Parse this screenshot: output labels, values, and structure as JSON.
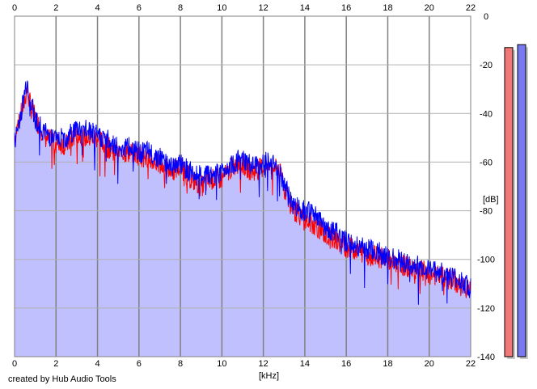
{
  "chart_data": {
    "type": "area",
    "xlabel": "[kHz]",
    "ylabel": "[dB]",
    "xlim": [
      0,
      22
    ],
    "ylim": [
      -140,
      0
    ],
    "x_ticks": [
      0,
      2,
      4,
      6,
      8,
      10,
      12,
      14,
      16,
      18,
      20,
      22
    ],
    "y_ticks": [
      0,
      -20,
      -40,
      -60,
      -80,
      -100,
      -120,
      -140
    ],
    "grid": true,
    "fill_color": "#c0c0ff",
    "series": [
      {
        "color": "#ff0000",
        "x": [
          0.0,
          0.2,
          0.4,
          0.6,
          0.8,
          1.0,
          1.2,
          1.5,
          2.0,
          2.5,
          3.0,
          3.5,
          4.0,
          4.5,
          5.0,
          5.5,
          6.0,
          6.5,
          7.0,
          7.5,
          8.0,
          8.5,
          9.0,
          9.5,
          10.0,
          10.5,
          11.0,
          11.5,
          12.0,
          12.5,
          12.9,
          13.2,
          13.5,
          14.0,
          14.5,
          15.0,
          15.5,
          16.0,
          16.5,
          17.0,
          17.5,
          18.0,
          18.5,
          19.0,
          19.5,
          20.0,
          20.5,
          21.0,
          21.5,
          22.0
        ],
        "values": [
          -50,
          -43,
          -38,
          -30,
          -38,
          -42,
          -45,
          -50,
          -52,
          -53,
          -48,
          -50,
          -50,
          -54,
          -56,
          -56,
          -57,
          -59,
          -61,
          -64,
          -62,
          -67,
          -70,
          -67,
          -67,
          -62,
          -61,
          -64,
          -62,
          -62,
          -66,
          -75,
          -80,
          -84,
          -86,
          -90,
          -92,
          -95,
          -96,
          -98,
          -99,
          -100,
          -102,
          -103,
          -104,
          -106,
          -107,
          -108,
          -111,
          -112
        ]
      },
      {
        "color": "#0000ff",
        "x": [
          0.0,
          0.2,
          0.4,
          0.6,
          0.8,
          1.0,
          1.2,
          1.5,
          2.0,
          2.5,
          3.0,
          3.5,
          4.0,
          4.5,
          5.0,
          5.5,
          6.0,
          6.5,
          7.0,
          7.5,
          8.0,
          8.5,
          9.0,
          9.5,
          10.0,
          10.5,
          11.0,
          11.5,
          12.0,
          12.5,
          12.9,
          13.2,
          13.5,
          14.0,
          14.5,
          15.0,
          15.5,
          16.0,
          16.5,
          17.0,
          17.5,
          18.0,
          18.5,
          19.0,
          19.5,
          20.0,
          20.5,
          21.0,
          21.5,
          22.0
        ],
        "values": [
          -52,
          -44,
          -36,
          -26,
          -36,
          -42,
          -45,
          -48,
          -51,
          -50,
          -46,
          -47,
          -49,
          -51,
          -54,
          -54,
          -56,
          -56,
          -58,
          -61,
          -61,
          -64,
          -66,
          -65,
          -64,
          -60,
          -59,
          -62,
          -60,
          -61,
          -66,
          -74,
          -78,
          -80,
          -82,
          -87,
          -89,
          -93,
          -94,
          -96,
          -97,
          -99,
          -100,
          -102,
          -103,
          -104,
          -105,
          -107,
          -109,
          -112
        ]
      }
    ]
  },
  "level_meters": [
    {
      "color": "#f07878",
      "level_db": -12.9
    },
    {
      "color": "#7878f0",
      "level_db": -11.7
    }
  ],
  "credit": "created by Hub Audio Tools"
}
